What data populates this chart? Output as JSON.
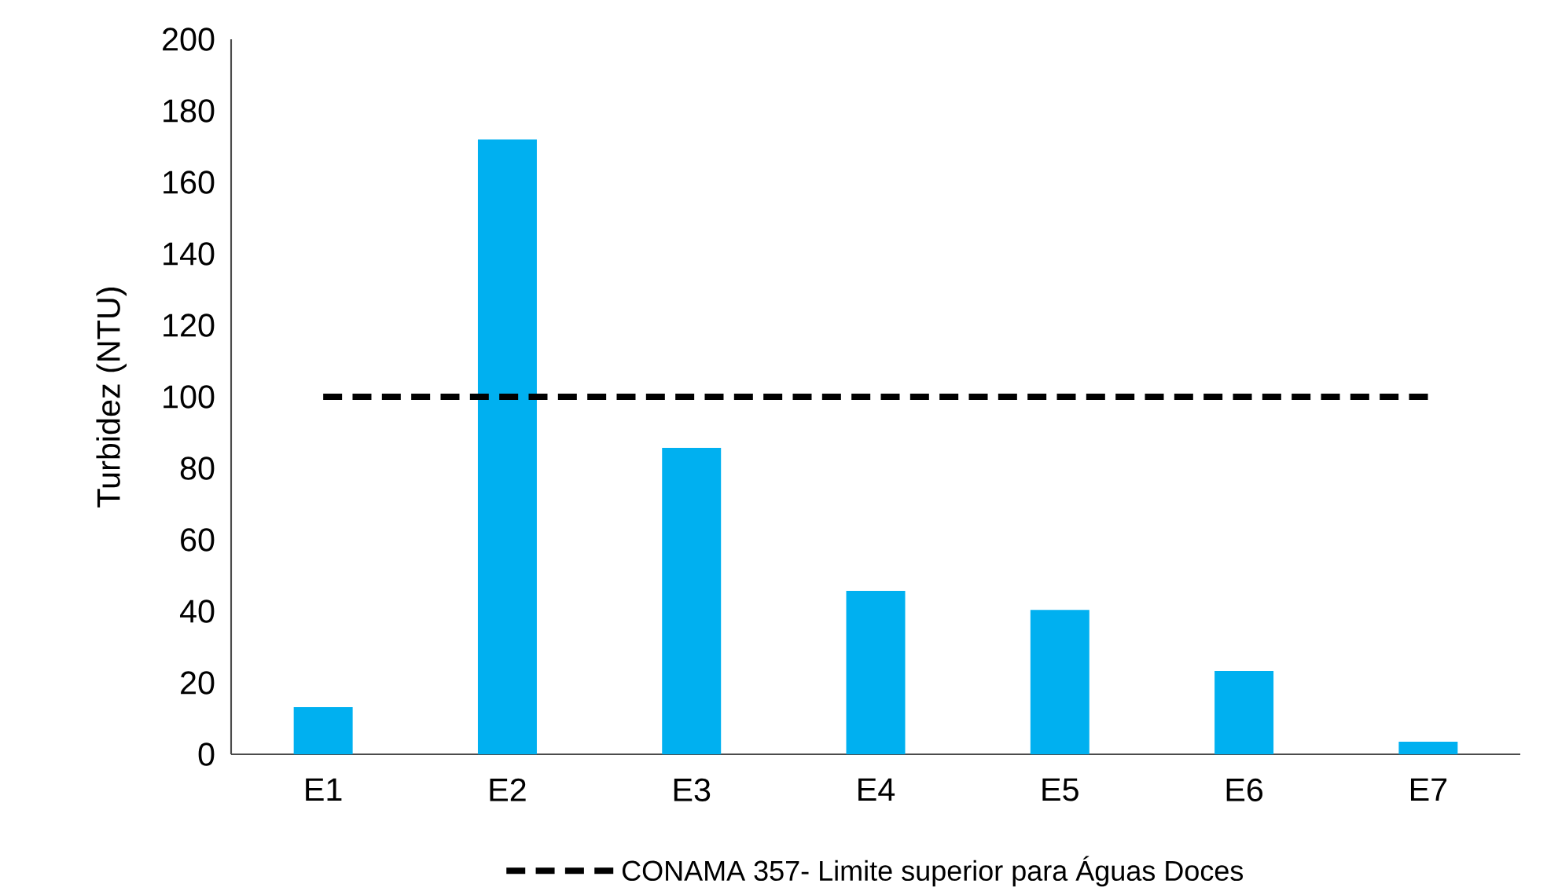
{
  "chart_data": {
    "type": "bar",
    "ylabel": "Turbidez (NTU)",
    "categories": [
      "E1",
      "E2",
      "E3",
      "E4",
      "E5",
      "E6",
      "E7"
    ],
    "series": [
      {
        "color": "#00b0f0",
        "values": [
          13.2,
          172,
          85.7,
          45.7,
          40.4,
          23.3,
          3.5
        ]
      },
      {
        "type": "line",
        "name": "CONAMA 357- Limite superior para Águas Doces",
        "color": "#000000",
        "line_style": "dashed",
        "marker": "none",
        "values": [
          100,
          100,
          100,
          100,
          100,
          100,
          100
        ]
      }
    ],
    "ylim": [
      0,
      200
    ],
    "yticks": [
      0,
      20,
      40,
      60,
      80,
      100,
      120,
      140,
      160,
      180,
      200
    ],
    "grid": false,
    "legend": "bottom"
  }
}
